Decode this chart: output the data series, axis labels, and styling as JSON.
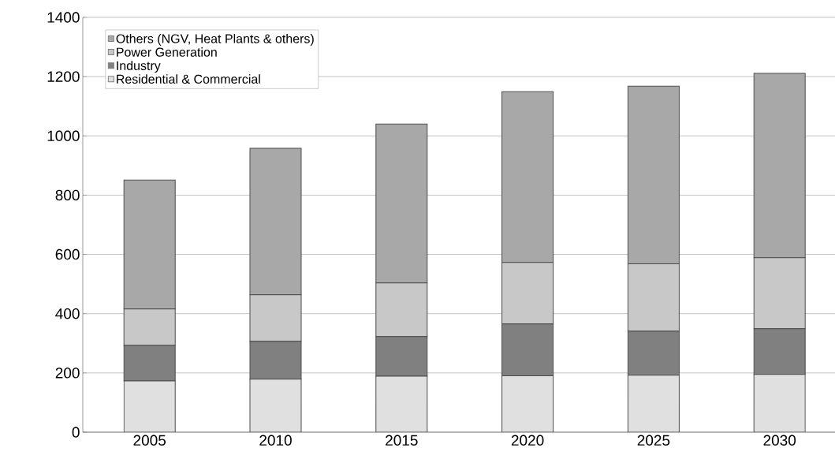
{
  "chart_data": {
    "type": "bar",
    "stacked": true,
    "categories": [
      "2005",
      "2010",
      "2015",
      "2020",
      "2025",
      "2030"
    ],
    "series": [
      {
        "name": "Residential & Commercial",
        "color": "#e0e0e0",
        "values": [
          173,
          179,
          189,
          190,
          192,
          195
        ]
      },
      {
        "name": "Industry",
        "color": "#808080",
        "values": [
          120,
          128,
          134,
          175,
          149,
          154
        ]
      },
      {
        "name": "Power Generation",
        "color": "#c8c8c8",
        "values": [
          123,
          157,
          181,
          208,
          227,
          240
        ]
      },
      {
        "name": "Others (NGV, Heat Plants & others)",
        "color": "#a8a8a8",
        "values": [
          435,
          494,
          536,
          576,
          600,
          622
        ]
      }
    ],
    "ylim": [
      0,
      1400
    ],
    "yticks": [
      0,
      200,
      400,
      600,
      800,
      1000,
      1200,
      1400
    ],
    "grid": "y",
    "legend": "top left"
  }
}
